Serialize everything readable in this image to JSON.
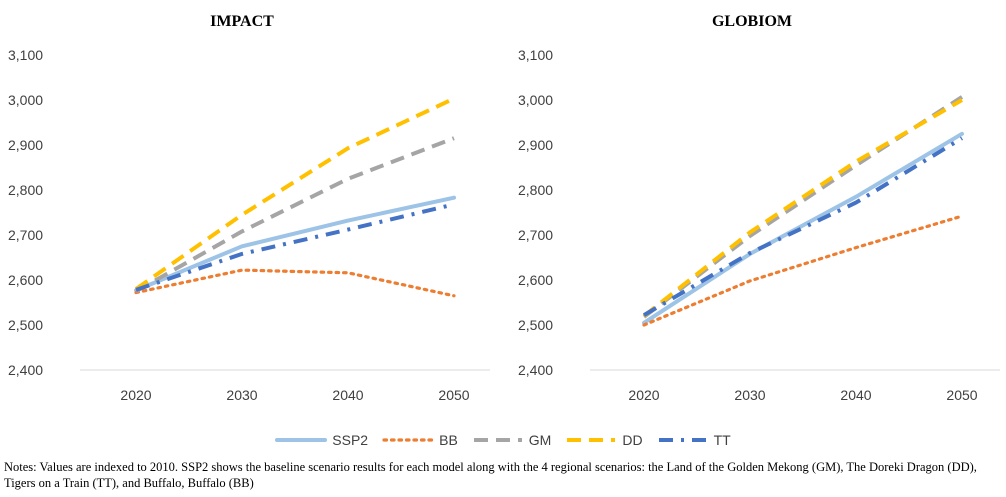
{
  "chart_data": [
    {
      "type": "line",
      "title": "IMPACT",
      "x": [
        "2020",
        "2030",
        "2040",
        "2050"
      ],
      "ylim": [
        2400,
        3100
      ],
      "yticks": [
        "2,400",
        "2,500",
        "2,600",
        "2,700",
        "2,800",
        "2,900",
        "3,000",
        "3,100"
      ],
      "grid": false,
      "series": [
        {
          "name": "SSP2",
          "values": [
            2577,
            2675,
            2732,
            2783
          ]
        },
        {
          "name": "BB",
          "values": [
            2572,
            2622,
            2616,
            2565
          ]
        },
        {
          "name": "GM",
          "values": [
            2575,
            2708,
            2825,
            2915
          ]
        },
        {
          "name": "DD",
          "values": [
            2580,
            2745,
            2893,
            3003
          ]
        },
        {
          "name": "TT",
          "values": [
            2578,
            2658,
            2712,
            2768
          ]
        }
      ]
    },
    {
      "type": "line",
      "title": "GLOBIOM",
      "x": [
        "2020",
        "2030",
        "2040",
        "2050"
      ],
      "ylim": [
        2400,
        3100
      ],
      "yticks": [
        "2,400",
        "2,500",
        "2,600",
        "2,700",
        "2,800",
        "2,900",
        "3,000",
        "3,100"
      ],
      "grid": false,
      "series": [
        {
          "name": "SSP2",
          "values": [
            2505,
            2658,
            2785,
            2925
          ]
        },
        {
          "name": "BB",
          "values": [
            2500,
            2598,
            2672,
            2742
          ]
        },
        {
          "name": "GM",
          "values": [
            2518,
            2698,
            2855,
            3007
          ]
        },
        {
          "name": "DD",
          "values": [
            2520,
            2706,
            2863,
            3000
          ]
        },
        {
          "name": "TT",
          "values": [
            2522,
            2660,
            2772,
            2915
          ]
        }
      ]
    }
  ],
  "legend": {
    "position": "bottom",
    "items": [
      {
        "name": "SSP2",
        "color": "#9DC3E6",
        "style": "solid"
      },
      {
        "name": "BB",
        "color": "#ED7D31",
        "style": "dotted"
      },
      {
        "name": "GM",
        "color": "#A5A5A5",
        "style": "dashed"
      },
      {
        "name": "DD",
        "color": "#FFC000",
        "style": "dashed"
      },
      {
        "name": "TT",
        "color": "#4472C4",
        "style": "dash-dot"
      }
    ]
  },
  "notes": "Notes: Values are indexed to 2010. SSP2 shows the baseline scenario results for each model along with the 4 regional scenarios: the Land of the Golden Mekong (GM), The Doreki Dragon (DD), Tigers on a Train (TT), and Buffalo, Buffalo (BB)"
}
